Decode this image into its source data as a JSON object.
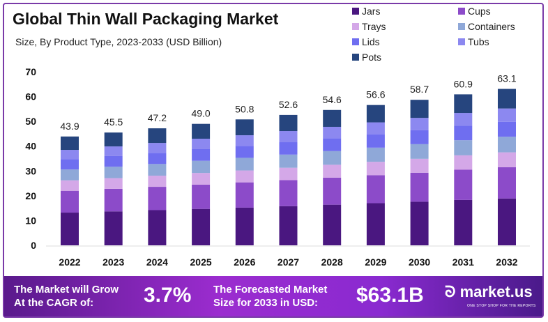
{
  "chart_data": {
    "type": "bar",
    "stacked": true,
    "title": "Global Thin Wall Packaging Market",
    "subtitle": "Size, By Product Type, 2023-2033 (USD Billion)",
    "categories": [
      "2022",
      "2023",
      "2024",
      "2025",
      "2026",
      "2027",
      "2028",
      "2029",
      "2030",
      "2031",
      "2032"
    ],
    "totals": [
      "43.9",
      "45.5",
      "47.2",
      "49.0",
      "50.8",
      "52.6",
      "54.6",
      "56.6",
      "58.7",
      "60.9",
      "63.1"
    ],
    "series": [
      {
        "name": "Jars",
        "color": "#4a1780",
        "values": [
          13.2,
          13.7,
          14.2,
          14.7,
          15.2,
          15.8,
          16.4,
          17.0,
          17.6,
          18.3,
          18.9
        ]
      },
      {
        "name": "Cups",
        "color": "#8c4bc9",
        "values": [
          8.8,
          9.1,
          9.4,
          9.8,
          10.2,
          10.5,
          10.9,
          11.3,
          11.7,
          12.2,
          12.6
        ]
      },
      {
        "name": "Trays",
        "color": "#d4a8e8",
        "values": [
          4.2,
          4.3,
          4.5,
          4.7,
          4.8,
          5.0,
          5.2,
          5.4,
          5.6,
          5.8,
          6.0
        ]
      },
      {
        "name": "Containers",
        "color": "#8fa8d8",
        "values": [
          4.4,
          4.6,
          4.7,
          4.9,
          5.1,
          5.3,
          5.5,
          5.7,
          5.9,
          6.1,
          6.3
        ]
      },
      {
        "name": "Lids",
        "color": "#6f6ef0",
        "values": [
          4.2,
          4.3,
          4.5,
          4.7,
          4.8,
          5.0,
          5.2,
          5.4,
          5.6,
          5.8,
          6.0
        ]
      },
      {
        "name": "Tubs",
        "color": "#8c88f0",
        "values": [
          3.7,
          3.9,
          4.0,
          4.2,
          4.3,
          4.5,
          4.6,
          4.8,
          5.0,
          5.2,
          5.4
        ]
      },
      {
        "name": "Pots",
        "color": "#26457e",
        "values": [
          5.4,
          5.6,
          5.9,
          6.0,
          6.4,
          6.5,
          6.8,
          7.0,
          7.3,
          7.5,
          7.9
        ]
      }
    ],
    "ylim": [
      0,
      70
    ],
    "yticks": [
      "0",
      "10",
      "20",
      "30",
      "40",
      "50",
      "60",
      "70"
    ],
    "grid": false,
    "legend": "top-right"
  },
  "banner": {
    "cagr_label_1": "The Market will Grow",
    "cagr_label_2": "At the CAGR of:",
    "cagr_value": "3.7%",
    "forecast_label_1": "The Forecasted Market",
    "forecast_label_2": "Size for 2033 in USD:",
    "forecast_value": "$63.1B",
    "logo_text": "market.us",
    "logo_tagline": "ONE STOP SHOP FOR THE REPORTS"
  }
}
